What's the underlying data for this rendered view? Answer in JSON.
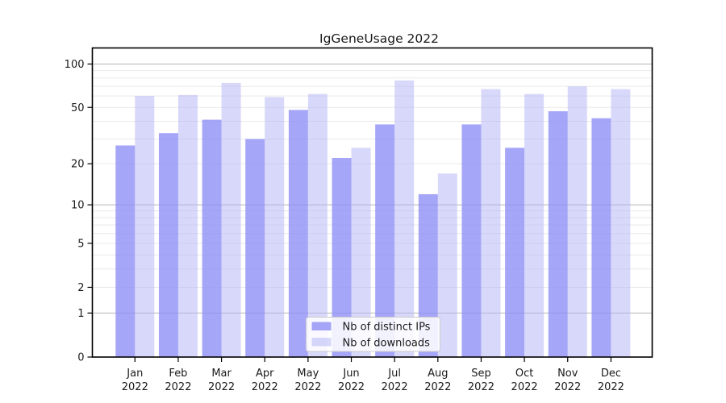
{
  "title": "IgGeneUsage 2022",
  "chart_data": {
    "type": "bar",
    "title": "IgGeneUsage 2022",
    "y_scale": "log10(value+1)",
    "grid": true,
    "legend_position": "bottom-center-inside",
    "categories": [
      "Jan",
      "Feb",
      "Mar",
      "Apr",
      "May",
      "Jun",
      "Jul",
      "Aug",
      "Sep",
      "Oct",
      "Nov",
      "Dec"
    ],
    "year": "2022",
    "series": [
      {
        "name": "Nb of distinct IPs",
        "color_key": "distinct_ips",
        "values": [
          27,
          33,
          41,
          30,
          48,
          22,
          38,
          12,
          38,
          26,
          47,
          42
        ]
      },
      {
        "name": "Nb of downloads",
        "color_key": "downloads",
        "values": [
          60,
          61,
          74,
          59,
          62,
          26,
          77,
          17,
          67,
          62,
          70,
          67
        ]
      }
    ],
    "y_ticks": [
      0,
      1,
      2,
      5,
      10,
      20,
      50,
      100
    ],
    "y_tick_labels": [
      "0",
      "1",
      "2",
      "5",
      "10",
      "20",
      "50",
      "100"
    ],
    "y_major_gridlines": [
      1,
      10,
      100
    ],
    "y_minor_gridlines": [
      2,
      3,
      4,
      5,
      6,
      7,
      8,
      9,
      20,
      30,
      40,
      50,
      60,
      70,
      80,
      90
    ],
    "ylim": [
      0,
      129
    ],
    "xlabel": "",
    "ylabel": ""
  },
  "legend": {
    "items": [
      {
        "label": "Nb of distinct IPs",
        "color_key": "distinct_ips"
      },
      {
        "label": "Nb of downloads",
        "color_key": "downloads"
      }
    ]
  },
  "colors": {
    "distinct_ips_bar": "#9090f6",
    "distinct_ips_opacity": 0.8,
    "downloads_bar": "#b1b1f5",
    "downloads_opacity": 0.5,
    "major_gridline": "#b4b4b4",
    "minor_gridline": "#e9e9e9",
    "axis_frame": "#000000",
    "tick_color": "#000000",
    "text_color": "#1a1a1a",
    "legend_border": "#cccccc",
    "legend_background": "rgba(255,255,255,0.85)",
    "background": "#ffffff"
  }
}
